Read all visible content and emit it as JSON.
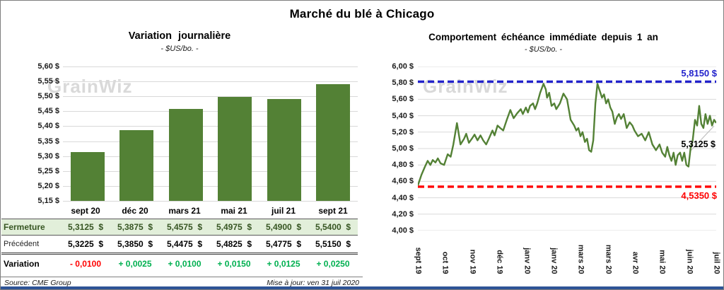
{
  "title": "Marché du blé à Chicago",
  "watermark": "GrainWiz",
  "footer": {
    "source": "Source: CME Group",
    "updated": "Mise à jour: ven 31 juil 2020"
  },
  "colors": {
    "bar_green": "#538135",
    "line_green": "#538135",
    "blue": "#2222cc",
    "red": "#ff0000",
    "grid": "#d9d9d9",
    "fermeture_bg": "#e2efda",
    "fermeture_text": "#375623",
    "variation_pos": "#00b050",
    "variation_neg": "#ff0000",
    "bottom_bar": "#2e5496",
    "leader": "#bfbfbf"
  },
  "table": {
    "columns": [
      "sept 20",
      "déc 20",
      "mars 21",
      "mai 21",
      "juil 21",
      "sept 21"
    ],
    "rows": [
      {
        "key": "fermeture",
        "label": "Fermeture",
        "values": [
          "5,3125  $",
          "5,3875  $",
          "5,4575  $",
          "5,4975  $",
          "5,4900  $",
          "5,5400  $"
        ]
      },
      {
        "key": "precedent",
        "label": "Précédent",
        "values": [
          "5,3225  $",
          "5,3850  $",
          "5,4475  $",
          "5,4825  $",
          "5,4775  $",
          "5,5150  $"
        ]
      },
      {
        "key": "variation",
        "label": "Variation",
        "values": [
          "- 0,0100",
          "+ 0,0025",
          "+ 0,0100",
          "+ 0,0150",
          "+ 0,0125",
          "+ 0,0250"
        ],
        "value_colors": [
          "#ff0000",
          "#00b050",
          "#00b050",
          "#00b050",
          "#00b050",
          "#00b050"
        ]
      }
    ]
  },
  "chart_data": [
    {
      "type": "bar",
      "title": "Variation journalière",
      "subtitle": "- $US/bo. -",
      "categories": [
        "sept 20",
        "déc 20",
        "mars 21",
        "mai 21",
        "juil 21",
        "sept 21"
      ],
      "values": [
        5.3125,
        5.3875,
        5.4575,
        5.4975,
        5.49,
        5.54
      ],
      "ylim": [
        5.15,
        5.6
      ],
      "yticks": [
        "5,60 $",
        "5,55 $",
        "5,50 $",
        "5,45 $",
        "5,40 $",
        "5,35 $",
        "5,30 $",
        "5,25 $",
        "5,20 $",
        "5,15 $"
      ],
      "grid": true,
      "xlabel": "",
      "ylabel": ""
    },
    {
      "type": "line",
      "title": "Comportement échéance immédiate depuis 1 an",
      "subtitle": "- $US/bo. -",
      "ylim": [
        4.0,
        6.0
      ],
      "yticks": [
        "6,00 $",
        "5,80 $",
        "5,60 $",
        "5,40 $",
        "5,20 $",
        "5,00 $",
        "4,80 $",
        "4,60 $",
        "4,40 $",
        "4,20 $",
        "4,00 $"
      ],
      "xticks": [
        "sept 19",
        "oct 19",
        "nov 19",
        "déc 19",
        "janv 20",
        "janv 20",
        "mars 20",
        "mars 20",
        "avr 20",
        "mai 20",
        "juin 20",
        "juil 20"
      ],
      "grid": true,
      "resistance": {
        "value": 5.815,
        "label": "5,8150 $"
      },
      "support": {
        "value": 4.535,
        "label": "4,5350 $"
      },
      "last": {
        "value": 5.3125,
        "label": "5,3125 $"
      },
      "points": [
        [
          0,
          4.55
        ],
        [
          1.2,
          4.68
        ],
        [
          2.4,
          4.78
        ],
        [
          3.3,
          4.85
        ],
        [
          4.2,
          4.8
        ],
        [
          5.0,
          4.86
        ],
        [
          5.9,
          4.83
        ],
        [
          6.7,
          4.88
        ],
        [
          7.6,
          4.82
        ],
        [
          8.8,
          4.8
        ],
        [
          10,
          4.93
        ],
        [
          11,
          4.9
        ],
        [
          11.9,
          5.05
        ],
        [
          13.1,
          5.31
        ],
        [
          14.3,
          5.05
        ],
        [
          15.5,
          5.12
        ],
        [
          16.2,
          5.18
        ],
        [
          17.1,
          5.07
        ],
        [
          18.1,
          5.12
        ],
        [
          19,
          5.17
        ],
        [
          20,
          5.1
        ],
        [
          21,
          5.16
        ],
        [
          21.9,
          5.1
        ],
        [
          22.9,
          5.05
        ],
        [
          23.8,
          5.12
        ],
        [
          25,
          5.22
        ],
        [
          25.7,
          5.16
        ],
        [
          26.7,
          5.28
        ],
        [
          27.6,
          5.25
        ],
        [
          28.6,
          5.22
        ],
        [
          29.8,
          5.35
        ],
        [
          31,
          5.47
        ],
        [
          32.1,
          5.37
        ],
        [
          33.3,
          5.43
        ],
        [
          34.5,
          5.48
        ],
        [
          35.2,
          5.42
        ],
        [
          36.2,
          5.5
        ],
        [
          36.9,
          5.44
        ],
        [
          37.6,
          5.52
        ],
        [
          38.6,
          5.55
        ],
        [
          39.3,
          5.48
        ],
        [
          40,
          5.55
        ],
        [
          41,
          5.68
        ],
        [
          42.1,
          5.79
        ],
        [
          42.9,
          5.72
        ],
        [
          43.3,
          5.62
        ],
        [
          44,
          5.68
        ],
        [
          44.8,
          5.52
        ],
        [
          45.7,
          5.55
        ],
        [
          46.4,
          5.48
        ],
        [
          47.6,
          5.55
        ],
        [
          48.8,
          5.67
        ],
        [
          50,
          5.6
        ],
        [
          51.2,
          5.35
        ],
        [
          52.4,
          5.28
        ],
        [
          53.1,
          5.22
        ],
        [
          53.8,
          5.25
        ],
        [
          54.5,
          5.15
        ],
        [
          55.2,
          5.2
        ],
        [
          56,
          5.08
        ],
        [
          56.7,
          5.12
        ],
        [
          57.4,
          4.98
        ],
        [
          58.1,
          4.96
        ],
        [
          58.8,
          5.1
        ],
        [
          59.5,
          5.55
        ],
        [
          60.2,
          5.79
        ],
        [
          61,
          5.7
        ],
        [
          61.7,
          5.62
        ],
        [
          62.4,
          5.66
        ],
        [
          63.1,
          5.55
        ],
        [
          63.8,
          5.6
        ],
        [
          64.5,
          5.5
        ],
        [
          65.2,
          5.45
        ],
        [
          66,
          5.3
        ],
        [
          66.7,
          5.38
        ],
        [
          67.4,
          5.42
        ],
        [
          68.1,
          5.36
        ],
        [
          69,
          5.42
        ],
        [
          70,
          5.25
        ],
        [
          71,
          5.32
        ],
        [
          71.9,
          5.28
        ],
        [
          72.6,
          5.22
        ],
        [
          73.8,
          5.15
        ],
        [
          75,
          5.18
        ],
        [
          76.2,
          5.1
        ],
        [
          77.4,
          5.2
        ],
        [
          78.6,
          5.05
        ],
        [
          79.8,
          4.98
        ],
        [
          81,
          5.05
        ],
        [
          81.9,
          4.95
        ],
        [
          82.9,
          4.9
        ],
        [
          83.6,
          5.02
        ],
        [
          84.3,
          4.92
        ],
        [
          85,
          4.85
        ],
        [
          85.7,
          4.95
        ],
        [
          86.4,
          4.8
        ],
        [
          87.1,
          4.92
        ],
        [
          87.9,
          4.95
        ],
        [
          88.6,
          4.85
        ],
        [
          89.3,
          4.95
        ],
        [
          90,
          4.8
        ],
        [
          90.7,
          4.78
        ],
        [
          91.4,
          5.0
        ],
        [
          92.1,
          5.1
        ],
        [
          92.9,
          5.35
        ],
        [
          93.6,
          5.28
        ],
        [
          94.3,
          5.52
        ],
        [
          95,
          5.3
        ],
        [
          95.7,
          5.25
        ],
        [
          96.4,
          5.42
        ],
        [
          97.1,
          5.3
        ],
        [
          97.9,
          5.4
        ],
        [
          98.6,
          5.28
        ],
        [
          99.3,
          5.35
        ],
        [
          100,
          5.3125
        ]
      ]
    }
  ]
}
